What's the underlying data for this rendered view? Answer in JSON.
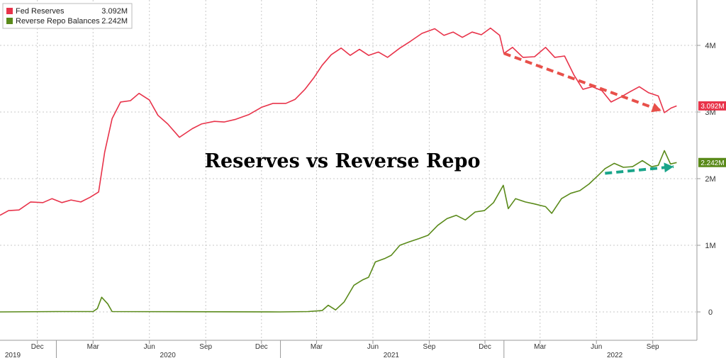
{
  "chart_data": {
    "type": "line",
    "title": "Reserves vs Reverse Repo",
    "ylim": [
      0,
      4500000
    ],
    "y_ticks": [
      {
        "value": 0,
        "label": "0"
      },
      {
        "value": 1000000,
        "label": "1M"
      },
      {
        "value": 2000000,
        "label": "2M"
      },
      {
        "value": 3000000,
        "label": "3M"
      },
      {
        "value": 4000000,
        "label": "4M"
      }
    ],
    "x_month_ticks": [
      {
        "date": "2019-12-01",
        "label": "Dec"
      },
      {
        "date": "2020-03-01",
        "label": "Mar"
      },
      {
        "date": "2020-06-01",
        "label": "Jun"
      },
      {
        "date": "2020-09-01",
        "label": "Sep"
      },
      {
        "date": "2020-12-01",
        "label": "Dec"
      },
      {
        "date": "2021-03-01",
        "label": "Mar"
      },
      {
        "date": "2021-06-01",
        "label": "Jun"
      },
      {
        "date": "2021-09-01",
        "label": "Sep"
      },
      {
        "date": "2021-12-01",
        "label": "Dec"
      },
      {
        "date": "2022-03-01",
        "label": "Mar"
      },
      {
        "date": "2022-06-01",
        "label": "Jun"
      },
      {
        "date": "2022-09-01",
        "label": "Sep"
      }
    ],
    "x_year_labels": [
      {
        "date": "2019-10-20",
        "label": "2019"
      },
      {
        "date": "2020-07-01",
        "label": "2020"
      },
      {
        "date": "2021-07-01",
        "label": "2021"
      },
      {
        "date": "2022-07-01",
        "label": "2022"
      }
    ],
    "x_year_dividers": [
      "2020-01-01",
      "2021-01-01",
      "2022-01-01"
    ],
    "x_range": [
      "2019-10-01",
      "2022-10-20"
    ],
    "grid": true,
    "legend_position": "top-left",
    "series": [
      {
        "name": "Fed Reserves",
        "color": "#e8334a",
        "last_value_label": "3.092M",
        "points": [
          [
            "2019-10-01",
            1450000
          ],
          [
            "2019-10-15",
            1520000
          ],
          [
            "2019-11-01",
            1530000
          ],
          [
            "2019-11-20",
            1650000
          ],
          [
            "2019-12-10",
            1640000
          ],
          [
            "2019-12-25",
            1700000
          ],
          [
            "2020-01-10",
            1640000
          ],
          [
            "2020-01-25",
            1680000
          ],
          [
            "2020-02-10",
            1650000
          ],
          [
            "2020-02-25",
            1720000
          ],
          [
            "2020-03-10",
            1800000
          ],
          [
            "2020-03-20",
            2400000
          ],
          [
            "2020-04-01",
            2900000
          ],
          [
            "2020-04-15",
            3150000
          ],
          [
            "2020-05-01",
            3170000
          ],
          [
            "2020-05-15",
            3280000
          ],
          [
            "2020-06-01",
            3180000
          ],
          [
            "2020-06-15",
            2950000
          ],
          [
            "2020-07-01",
            2820000
          ],
          [
            "2020-07-20",
            2620000
          ],
          [
            "2020-08-10",
            2750000
          ],
          [
            "2020-08-25",
            2820000
          ],
          [
            "2020-09-15",
            2860000
          ],
          [
            "2020-10-01",
            2850000
          ],
          [
            "2020-10-20",
            2890000
          ],
          [
            "2020-11-10",
            2960000
          ],
          [
            "2020-12-01",
            3070000
          ],
          [
            "2020-12-20",
            3130000
          ],
          [
            "2021-01-10",
            3130000
          ],
          [
            "2021-01-25",
            3190000
          ],
          [
            "2021-02-10",
            3340000
          ],
          [
            "2021-02-25",
            3520000
          ],
          [
            "2021-03-10",
            3700000
          ],
          [
            "2021-03-25",
            3860000
          ],
          [
            "2021-04-10",
            3960000
          ],
          [
            "2021-04-25",
            3850000
          ],
          [
            "2021-05-10",
            3940000
          ],
          [
            "2021-05-25",
            3850000
          ],
          [
            "2021-06-10",
            3900000
          ],
          [
            "2021-06-25",
            3820000
          ],
          [
            "2021-07-15",
            3960000
          ],
          [
            "2021-08-01",
            4060000
          ],
          [
            "2021-08-20",
            4180000
          ],
          [
            "2021-09-10",
            4250000
          ],
          [
            "2021-09-25",
            4150000
          ],
          [
            "2021-10-10",
            4200000
          ],
          [
            "2021-10-25",
            4120000
          ],
          [
            "2021-11-10",
            4200000
          ],
          [
            "2021-11-25",
            4160000
          ],
          [
            "2021-12-10",
            4260000
          ],
          [
            "2021-12-25",
            4150000
          ],
          [
            "2022-01-01",
            3880000
          ],
          [
            "2022-01-15",
            3970000
          ],
          [
            "2022-02-01",
            3820000
          ],
          [
            "2022-02-20",
            3830000
          ],
          [
            "2022-03-10",
            3970000
          ],
          [
            "2022-03-25",
            3820000
          ],
          [
            "2022-04-10",
            3840000
          ],
          [
            "2022-04-25",
            3560000
          ],
          [
            "2022-05-10",
            3340000
          ],
          [
            "2022-05-25",
            3380000
          ],
          [
            "2022-06-10",
            3320000
          ],
          [
            "2022-06-25",
            3150000
          ],
          [
            "2022-07-10",
            3220000
          ],
          [
            "2022-07-25",
            3300000
          ],
          [
            "2022-08-10",
            3380000
          ],
          [
            "2022-08-25",
            3290000
          ],
          [
            "2022-09-10",
            3240000
          ],
          [
            "2022-09-20",
            2990000
          ],
          [
            "2022-10-01",
            3060000
          ],
          [
            "2022-10-10",
            3092000
          ]
        ]
      },
      {
        "name": "Reverse Repo Balances",
        "color": "#5a8a1a",
        "last_value_label": "2.242M",
        "points": [
          [
            "2019-10-01",
            0
          ],
          [
            "2020-01-01",
            5000
          ],
          [
            "2020-03-01",
            5000
          ],
          [
            "2020-03-08",
            50000
          ],
          [
            "2020-03-15",
            220000
          ],
          [
            "2020-03-25",
            120000
          ],
          [
            "2020-04-01",
            5000
          ],
          [
            "2020-12-31",
            0
          ],
          [
            "2021-02-15",
            5000
          ],
          [
            "2021-03-10",
            20000
          ],
          [
            "2021-03-20",
            100000
          ],
          [
            "2021-04-01",
            30000
          ],
          [
            "2021-04-15",
            150000
          ],
          [
            "2021-05-01",
            400000
          ],
          [
            "2021-05-15",
            480000
          ],
          [
            "2021-05-25",
            520000
          ],
          [
            "2021-06-05",
            750000
          ],
          [
            "2021-06-20",
            800000
          ],
          [
            "2021-07-01",
            850000
          ],
          [
            "2021-07-15",
            1000000
          ],
          [
            "2021-07-30",
            1050000
          ],
          [
            "2021-08-15",
            1100000
          ],
          [
            "2021-08-30",
            1150000
          ],
          [
            "2021-09-15",
            1300000
          ],
          [
            "2021-09-30",
            1400000
          ],
          [
            "2021-10-15",
            1450000
          ],
          [
            "2021-10-30",
            1380000
          ],
          [
            "2021-11-15",
            1500000
          ],
          [
            "2021-11-30",
            1520000
          ],
          [
            "2021-12-15",
            1640000
          ],
          [
            "2021-12-31",
            1900000
          ],
          [
            "2022-01-08",
            1550000
          ],
          [
            "2022-01-20",
            1700000
          ],
          [
            "2022-02-05",
            1650000
          ],
          [
            "2022-02-20",
            1620000
          ],
          [
            "2022-03-10",
            1580000
          ],
          [
            "2022-03-20",
            1480000
          ],
          [
            "2022-04-05",
            1700000
          ],
          [
            "2022-04-20",
            1780000
          ],
          [
            "2022-05-05",
            1820000
          ],
          [
            "2022-05-20",
            1920000
          ],
          [
            "2022-06-05",
            2060000
          ],
          [
            "2022-06-15",
            2150000
          ],
          [
            "2022-06-30",
            2230000
          ],
          [
            "2022-07-15",
            2170000
          ],
          [
            "2022-07-30",
            2180000
          ],
          [
            "2022-08-15",
            2270000
          ],
          [
            "2022-08-30",
            2180000
          ],
          [
            "2022-09-10",
            2200000
          ],
          [
            "2022-09-20",
            2420000
          ],
          [
            "2022-09-30",
            2220000
          ],
          [
            "2022-10-10",
            2242000
          ]
        ]
      }
    ],
    "annotations": [
      {
        "type": "arrow",
        "color": "#e8504a",
        "from": [
          "2022-01-01",
          3880000
        ],
        "to": [
          "2022-09-15",
          3020000
        ]
      },
      {
        "type": "arrow",
        "color": "#1aa58a",
        "from": [
          "2022-06-15",
          2080000
        ],
        "to": [
          "2022-10-05",
          2180000
        ]
      }
    ]
  }
}
